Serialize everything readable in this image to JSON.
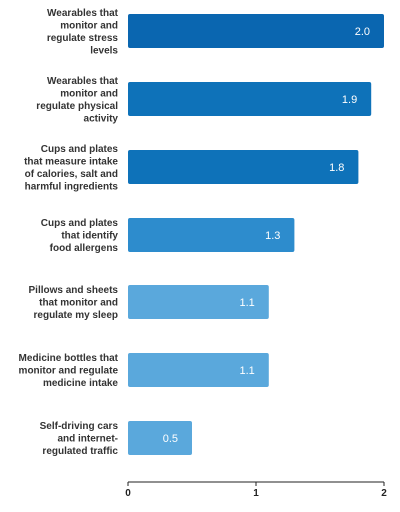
{
  "chart_data": {
    "type": "bar",
    "orientation": "horizontal",
    "categories": [
      "Wearables that monitor and regulate stress levels",
      "Wearables that monitor and regulate physical activity",
      "Cups and plates that measure intake of calories, salt and harmful ingredients",
      "Cups and plates that identify food allergens",
      "Pillows and sheets that monitor and regulate my sleep",
      "Medicine bottles that monitor and regulate medicine intake",
      "Self-driving cars and internet-regulated traffic"
    ],
    "category_lines": [
      [
        "Wearables that",
        "monitor and",
        "regulate stress",
        "levels"
      ],
      [
        "Wearables that",
        "monitor and",
        "regulate physical",
        "activity"
      ],
      [
        "Cups and plates",
        "that measure intake",
        "of calories, salt and",
        "harmful ingredients"
      ],
      [
        "Cups and plates",
        "that identify",
        "food allergens"
      ],
      [
        "Pillows and sheets",
        "that monitor and",
        "regulate my sleep"
      ],
      [
        "Medicine bottles that",
        "monitor and regulate",
        "medicine intake"
      ],
      [
        "Self-driving cars",
        "and internet-",
        "regulated traffic"
      ]
    ],
    "values": [
      2.0,
      1.9,
      1.8,
      1.3,
      1.1,
      1.1,
      0.5
    ],
    "value_labels": [
      "2.0",
      "1.9",
      "1.8",
      "1.3",
      "1.1",
      "1.1",
      "0.5"
    ],
    "bar_colors": [
      "#0a66b0",
      "#0e72b9",
      "#0e72b9",
      "#2d8ccd",
      "#5aa8dc",
      "#5aa8dc",
      "#5aa8dc"
    ],
    "xlim": [
      0,
      2
    ],
    "x_ticks": [
      "0",
      "1",
      "2"
    ],
    "x_tick_values": [
      0,
      1,
      2
    ],
    "axis_color": "#222222",
    "grid": false
  }
}
